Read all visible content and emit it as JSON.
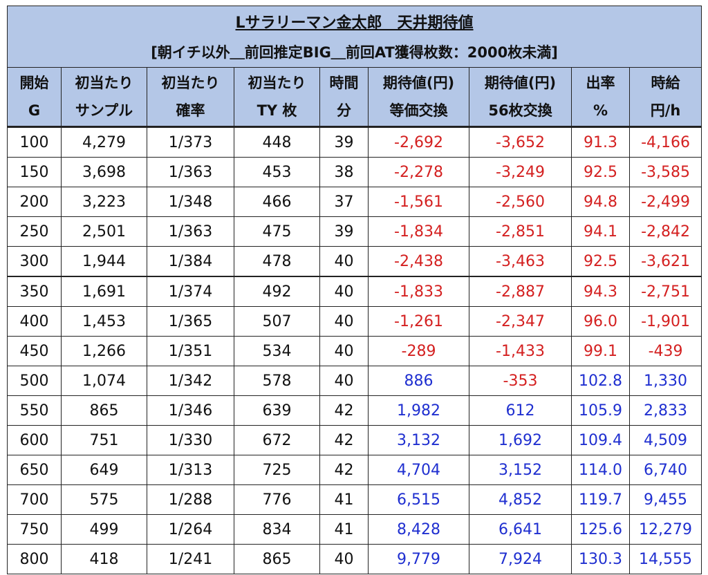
{
  "title": "Lサラリーマン金太郎　天井期待値",
  "subtitle": "[朝イチ以外＿前回推定BIG＿前回AT獲得枚数：2000枚未満]",
  "colors": {
    "header_bg": "#b4c7e7",
    "negative": "#d42020",
    "positive": "#1f2fd0"
  },
  "columns": [
    {
      "line1": "開始",
      "line2": "G"
    },
    {
      "line1": "初当たり",
      "line2": "サンプル"
    },
    {
      "line1": "初当たり",
      "line2": "確率"
    },
    {
      "line1": "初当たり",
      "line2": "TY 枚"
    },
    {
      "line1": "時間",
      "line2": "分"
    },
    {
      "line1": "期待値(円)",
      "line2": "等価交換"
    },
    {
      "line1": "期待値(円)",
      "line2": "56枚交換"
    },
    {
      "line1": "出率",
      "line2": "%"
    },
    {
      "line1": "時給",
      "line2": "円/h"
    }
  ],
  "rows": [
    {
      "start": "100",
      "sample": "4,279",
      "prob": "1/373",
      "ty": "448",
      "time": "39",
      "ev_eq": "-2,692",
      "ev_56": "-3,652",
      "rate": "91.3",
      "hourly": "-4,166"
    },
    {
      "start": "150",
      "sample": "3,698",
      "prob": "1/363",
      "ty": "453",
      "time": "38",
      "ev_eq": "-2,278",
      "ev_56": "-3,249",
      "rate": "92.5",
      "hourly": "-3,585"
    },
    {
      "start": "200",
      "sample": "3,223",
      "prob": "1/348",
      "ty": "466",
      "time": "37",
      "ev_eq": "-1,561",
      "ev_56": "-2,560",
      "rate": "94.8",
      "hourly": "-2,499"
    },
    {
      "start": "250",
      "sample": "2,501",
      "prob": "1/363",
      "ty": "475",
      "time": "39",
      "ev_eq": "-1,834",
      "ev_56": "-2,851",
      "rate": "94.1",
      "hourly": "-2,842"
    },
    {
      "start": "300",
      "sample": "1,944",
      "prob": "1/384",
      "ty": "478",
      "time": "40",
      "ev_eq": "-2,438",
      "ev_56": "-3,463",
      "rate": "92.5",
      "hourly": "-3,621"
    },
    {
      "start": "350",
      "sample": "1,691",
      "prob": "1/374",
      "ty": "492",
      "time": "40",
      "ev_eq": "-1,833",
      "ev_56": "-2,887",
      "rate": "94.3",
      "hourly": "-2,751"
    },
    {
      "start": "400",
      "sample": "1,453",
      "prob": "1/365",
      "ty": "507",
      "time": "40",
      "ev_eq": "-1,261",
      "ev_56": "-2,347",
      "rate": "96.0",
      "hourly": "-1,901"
    },
    {
      "start": "450",
      "sample": "1,266",
      "prob": "1/351",
      "ty": "534",
      "time": "40",
      "ev_eq": "-289",
      "ev_56": "-1,433",
      "rate": "99.1",
      "hourly": "-439"
    },
    {
      "start": "500",
      "sample": "1,074",
      "prob": "1/342",
      "ty": "578",
      "time": "40",
      "ev_eq": "886",
      "ev_56": "-353",
      "rate": "102.8",
      "hourly": "1,330"
    },
    {
      "start": "550",
      "sample": "865",
      "prob": "1/346",
      "ty": "639",
      "time": "42",
      "ev_eq": "1,982",
      "ev_56": "612",
      "rate": "105.9",
      "hourly": "2,833"
    },
    {
      "start": "600",
      "sample": "751",
      "prob": "1/330",
      "ty": "672",
      "time": "42",
      "ev_eq": "3,132",
      "ev_56": "1,692",
      "rate": "109.4",
      "hourly": "4,509"
    },
    {
      "start": "650",
      "sample": "649",
      "prob": "1/313",
      "ty": "725",
      "time": "42",
      "ev_eq": "4,704",
      "ev_56": "3,152",
      "rate": "114.0",
      "hourly": "6,740"
    },
    {
      "start": "700",
      "sample": "575",
      "prob": "1/288",
      "ty": "776",
      "time": "41",
      "ev_eq": "6,515",
      "ev_56": "4,852",
      "rate": "119.7",
      "hourly": "9,455"
    },
    {
      "start": "750",
      "sample": "499",
      "prob": "1/264",
      "ty": "834",
      "time": "41",
      "ev_eq": "8,428",
      "ev_56": "6,641",
      "rate": "125.6",
      "hourly": "12,279"
    },
    {
      "start": "800",
      "sample": "418",
      "prob": "1/241",
      "ty": "865",
      "time": "40",
      "ev_eq": "9,779",
      "ev_56": "7,924",
      "rate": "130.3",
      "hourly": "14,555"
    }
  ]
}
